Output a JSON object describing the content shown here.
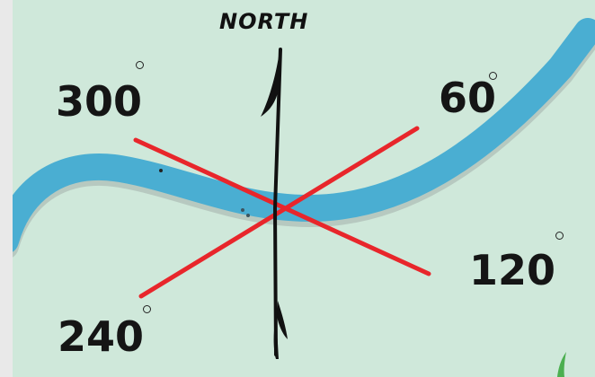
{
  "diagram": {
    "north_label": "NORTH",
    "bearings": [
      {
        "id": "b300",
        "text": "300"
      },
      {
        "id": "b60",
        "text": "60"
      },
      {
        "id": "b120",
        "text": "120"
      },
      {
        "id": "b240",
        "text": "240"
      }
    ],
    "colors": {
      "background": "#cfe8da",
      "river": "#4aaed2",
      "bearing_lines": "#e8262b",
      "north_arrow": "#111111"
    },
    "icons": [
      "north-arrow-icon",
      "degree-symbol-icon"
    ]
  }
}
